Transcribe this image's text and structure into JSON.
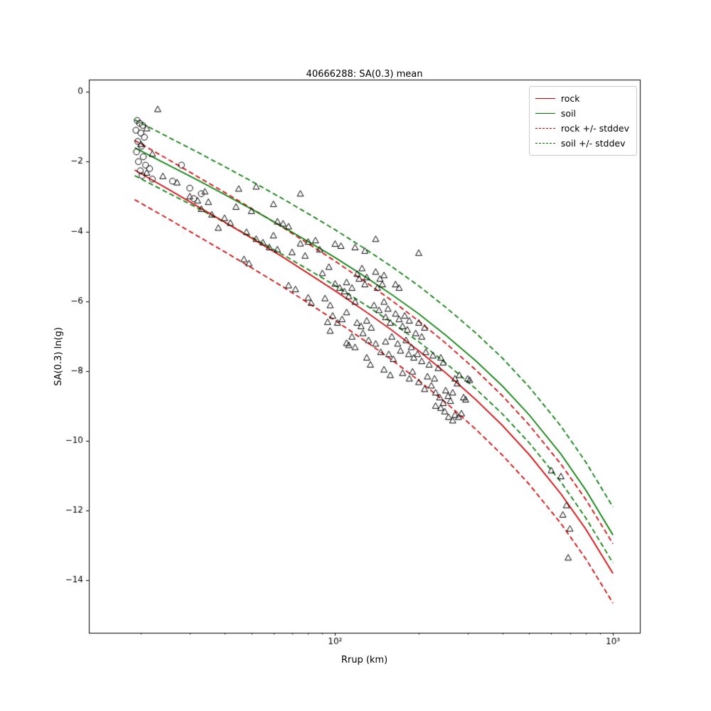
{
  "title": "40666288: SA(0.3) mean",
  "chart_data": {
    "type": "scatter",
    "title": "40666288: SA(0.3) mean",
    "xlabel": "Rrup (km)",
    "ylabel": "SA(0.3) ln(g)",
    "x_scale": "log",
    "xlim": [
      13,
      1250
    ],
    "ylim": [
      -15.5,
      0.35
    ],
    "x_major_ticks": [
      {
        "value": 100,
        "label": "10²"
      },
      {
        "value": 1000,
        "label": "10³"
      }
    ],
    "x_minor_ticks": [
      20,
      30,
      40,
      50,
      60,
      70,
      80,
      90,
      200,
      300,
      400,
      500,
      600,
      700,
      800,
      900
    ],
    "y_ticks": [
      {
        "value": 0,
        "label": "0"
      },
      {
        "value": -2,
        "label": "−2"
      },
      {
        "value": -4,
        "label": "−4"
      },
      {
        "value": -6,
        "label": "−6"
      },
      {
        "value": -8,
        "label": "−8"
      },
      {
        "value": -10,
        "label": "−10"
      },
      {
        "value": -12,
        "label": "−12"
      },
      {
        "value": -14,
        "label": "−14"
      }
    ],
    "colors": {
      "rock": "#cc0000",
      "soil": "#007700",
      "marker": "#000000"
    },
    "legend": [
      {
        "label": "rock",
        "color": "#cc0000",
        "dash": false
      },
      {
        "label": "soil",
        "color": "#007700",
        "dash": false
      },
      {
        "label": "rock +/- stddev",
        "color": "#cc0000",
        "dash": true
      },
      {
        "label": "soil +/- stddev",
        "color": "#007700",
        "dash": true
      }
    ],
    "curves": {
      "x": [
        19,
        25,
        32,
        40,
        50,
        65,
        80,
        100,
        130,
        160,
        200,
        250,
        320,
        400,
        500,
        650,
        800,
        1000
      ],
      "rock_mean": [
        -2.24,
        -2.78,
        -3.28,
        -3.73,
        -4.19,
        -4.74,
        -5.2,
        -5.7,
        -6.32,
        -6.83,
        -7.42,
        -8.05,
        -8.81,
        -9.56,
        -10.4,
        -11.52,
        -12.54,
        -13.8
      ],
      "soil_mean": [
        -1.6,
        -2.09,
        -2.53,
        -2.94,
        -3.36,
        -3.87,
        -4.29,
        -4.75,
        -5.33,
        -5.81,
        -6.36,
        -6.97,
        -7.7,
        -8.43,
        -9.26,
        -10.38,
        -11.42,
        -12.7
      ],
      "rock_stddev": 0.85,
      "soil_stddev": 0.8
    },
    "scatter": {
      "circles": [
        [
          19.4,
          -0.82
        ],
        [
          19.8,
          -0.9
        ],
        [
          20.3,
          -0.96
        ],
        [
          19.2,
          -1.1
        ],
        [
          20.0,
          -1.18
        ],
        [
          20.6,
          -1.3
        ],
        [
          19.5,
          -1.42
        ],
        [
          20.1,
          -1.56
        ],
        [
          19.3,
          -1.72
        ],
        [
          20.4,
          -1.86
        ],
        [
          19.6,
          -2.0
        ],
        [
          20.8,
          -2.1
        ],
        [
          19.9,
          -2.26
        ],
        [
          21.5,
          -2.2
        ],
        [
          20.2,
          -2.4
        ],
        [
          22,
          -2.5
        ],
        [
          26,
          -2.56
        ],
        [
          28,
          -2.1
        ],
        [
          30,
          -2.76
        ],
        [
          33,
          -2.92
        ],
        [
          31,
          -3.06
        ]
      ],
      "triangles": [
        [
          23,
          -0.5
        ],
        [
          21,
          -1.05
        ],
        [
          20,
          -1.5
        ],
        [
          22,
          -1.78
        ],
        [
          21,
          -2.32
        ],
        [
          24,
          -2.42
        ],
        [
          27,
          -2.6
        ],
        [
          30,
          -3.0
        ],
        [
          32,
          -3.12
        ],
        [
          34,
          -2.86
        ],
        [
          33,
          -3.36
        ],
        [
          36,
          -3.52
        ],
        [
          35,
          -3.16
        ],
        [
          38,
          -3.9
        ],
        [
          40,
          -3.62
        ],
        [
          42,
          -3.76
        ],
        [
          44,
          -3.3
        ],
        [
          45,
          -2.78
        ],
        [
          47,
          -4.8
        ],
        [
          49,
          -4.92
        ],
        [
          48,
          -4.02
        ],
        [
          50,
          -3.42
        ],
        [
          52,
          -2.72
        ],
        [
          52,
          -4.22
        ],
        [
          55,
          -4.32
        ],
        [
          58,
          -4.46
        ],
        [
          60,
          -3.22
        ],
        [
          60,
          -4.12
        ],
        [
          62,
          -4.52
        ],
        [
          62,
          -3.72
        ],
        [
          65,
          -3.78
        ],
        [
          68,
          -3.86
        ],
        [
          68,
          -5.55
        ],
        [
          72,
          -5.66
        ],
        [
          70,
          -4.6
        ],
        [
          75,
          -2.92
        ],
        [
          75,
          -4.35
        ],
        [
          78,
          -4.7
        ],
        [
          80,
          -4.3
        ],
        [
          80,
          -5.9
        ],
        [
          82,
          -6.05
        ],
        [
          85,
          -4.26
        ],
        [
          88,
          -4.52
        ],
        [
          90,
          -5.2
        ],
        [
          92,
          -5.92
        ],
        [
          95,
          -5.02
        ],
        [
          96,
          -6.12
        ],
        [
          98,
          -6.42
        ],
        [
          100,
          -4.36
        ],
        [
          100,
          -5.5
        ],
        [
          102,
          -6.62
        ],
        [
          104,
          -5.62
        ],
        [
          105,
          -4.42
        ],
        [
          106,
          -6.52
        ],
        [
          108,
          -5.72
        ],
        [
          110,
          -5.46
        ],
        [
          110,
          -6.32
        ],
        [
          110,
          -7.2
        ],
        [
          112,
          -5.86
        ],
        [
          112,
          -7.26
        ],
        [
          115,
          -5.62
        ],
        [
          115,
          -7.02
        ],
        [
          96,
          -6.85
        ],
        [
          94,
          -6.6
        ],
        [
          118,
          -4.46
        ],
        [
          118,
          -6.02
        ],
        [
          118,
          -7.32
        ],
        [
          120,
          -5.22
        ],
        [
          120,
          -6.62
        ],
        [
          122,
          -5.36
        ],
        [
          124,
          -6.72
        ],
        [
          125,
          -5.06
        ],
        [
          126,
          -6.92
        ],
        [
          128,
          -4.56
        ],
        [
          128,
          -5.52
        ],
        [
          130,
          -5.32
        ],
        [
          130,
          -6.56
        ],
        [
          130,
          -7.62
        ],
        [
          132,
          -7.12
        ],
        [
          134,
          -7.82
        ],
        [
          135,
          -6.76
        ],
        [
          138,
          -6.12
        ],
        [
          140,
          -4.22
        ],
        [
          140,
          -5.16
        ],
        [
          140,
          -7.22
        ],
        [
          142,
          -5.62
        ],
        [
          144,
          -6.26
        ],
        [
          145,
          -5.36
        ],
        [
          146,
          -7.46
        ],
        [
          148,
          -5.52
        ],
        [
          150,
          -5.26
        ],
        [
          150,
          -6.02
        ],
        [
          150,
          -7.96
        ],
        [
          152,
          -6.46
        ],
        [
          152,
          -7.16
        ],
        [
          155,
          -6.22
        ],
        [
          156,
          -7.52
        ],
        [
          158,
          -6.62
        ],
        [
          158,
          -8.12
        ],
        [
          160,
          -7.02
        ],
        [
          162,
          -7.66
        ],
        [
          165,
          -5.52
        ],
        [
          165,
          -6.36
        ],
        [
          168,
          -7.22
        ],
        [
          170,
          -5.62
        ],
        [
          170,
          -6.52
        ],
        [
          172,
          -7.42
        ],
        [
          175,
          -6.72
        ],
        [
          175,
          -8.06
        ],
        [
          178,
          -6.42
        ],
        [
          180,
          -7.12
        ],
        [
          182,
          -6.82
        ],
        [
          184,
          -7.52
        ],
        [
          185,
          -6.56
        ],
        [
          185,
          -8.22
        ],
        [
          188,
          -7.32
        ],
        [
          190,
          -8.02
        ],
        [
          192,
          -7.62
        ],
        [
          195,
          -6.92
        ],
        [
          198,
          -7.52
        ],
        [
          200,
          -4.62
        ],
        [
          200,
          -6.62
        ],
        [
          200,
          -8.32
        ],
        [
          205,
          -7.02
        ],
        [
          205,
          -7.72
        ],
        [
          210,
          -6.76
        ],
        [
          210,
          -8.52
        ],
        [
          212,
          -7.46
        ],
        [
          215,
          -8.16
        ],
        [
          218,
          -7.82
        ],
        [
          222,
          -8.42
        ],
        [
          225,
          -7.56
        ],
        [
          228,
          -8.22
        ],
        [
          230,
          -8.62
        ],
        [
          230,
          -9.0
        ],
        [
          235,
          -7.92
        ],
        [
          238,
          -8.76
        ],
        [
          240,
          -7.62
        ],
        [
          240,
          -9.06
        ],
        [
          245,
          -7.76
        ],
        [
          245,
          -8.92
        ],
        [
          248,
          -9.16
        ],
        [
          250,
          -8.56
        ],
        [
          255,
          -8.72
        ],
        [
          256,
          -9.32
        ],
        [
          260,
          -8.86
        ],
        [
          265,
          -8.62
        ],
        [
          265,
          -9.42
        ],
        [
          270,
          -8.22
        ],
        [
          270,
          -9.26
        ],
        [
          275,
          -8.36
        ],
        [
          278,
          -9.32
        ],
        [
          280,
          -8.12
        ],
        [
          285,
          -9.22
        ],
        [
          290,
          -8.76
        ],
        [
          295,
          -8.82
        ],
        [
          300,
          -8.22
        ],
        [
          305,
          -8.26
        ],
        [
          600,
          -10.85
        ],
        [
          650,
          -11.02
        ],
        [
          680,
          -11.85
        ],
        [
          660,
          -12.12
        ],
        [
          700,
          -12.52
        ],
        [
          690,
          -13.35
        ]
      ]
    }
  }
}
